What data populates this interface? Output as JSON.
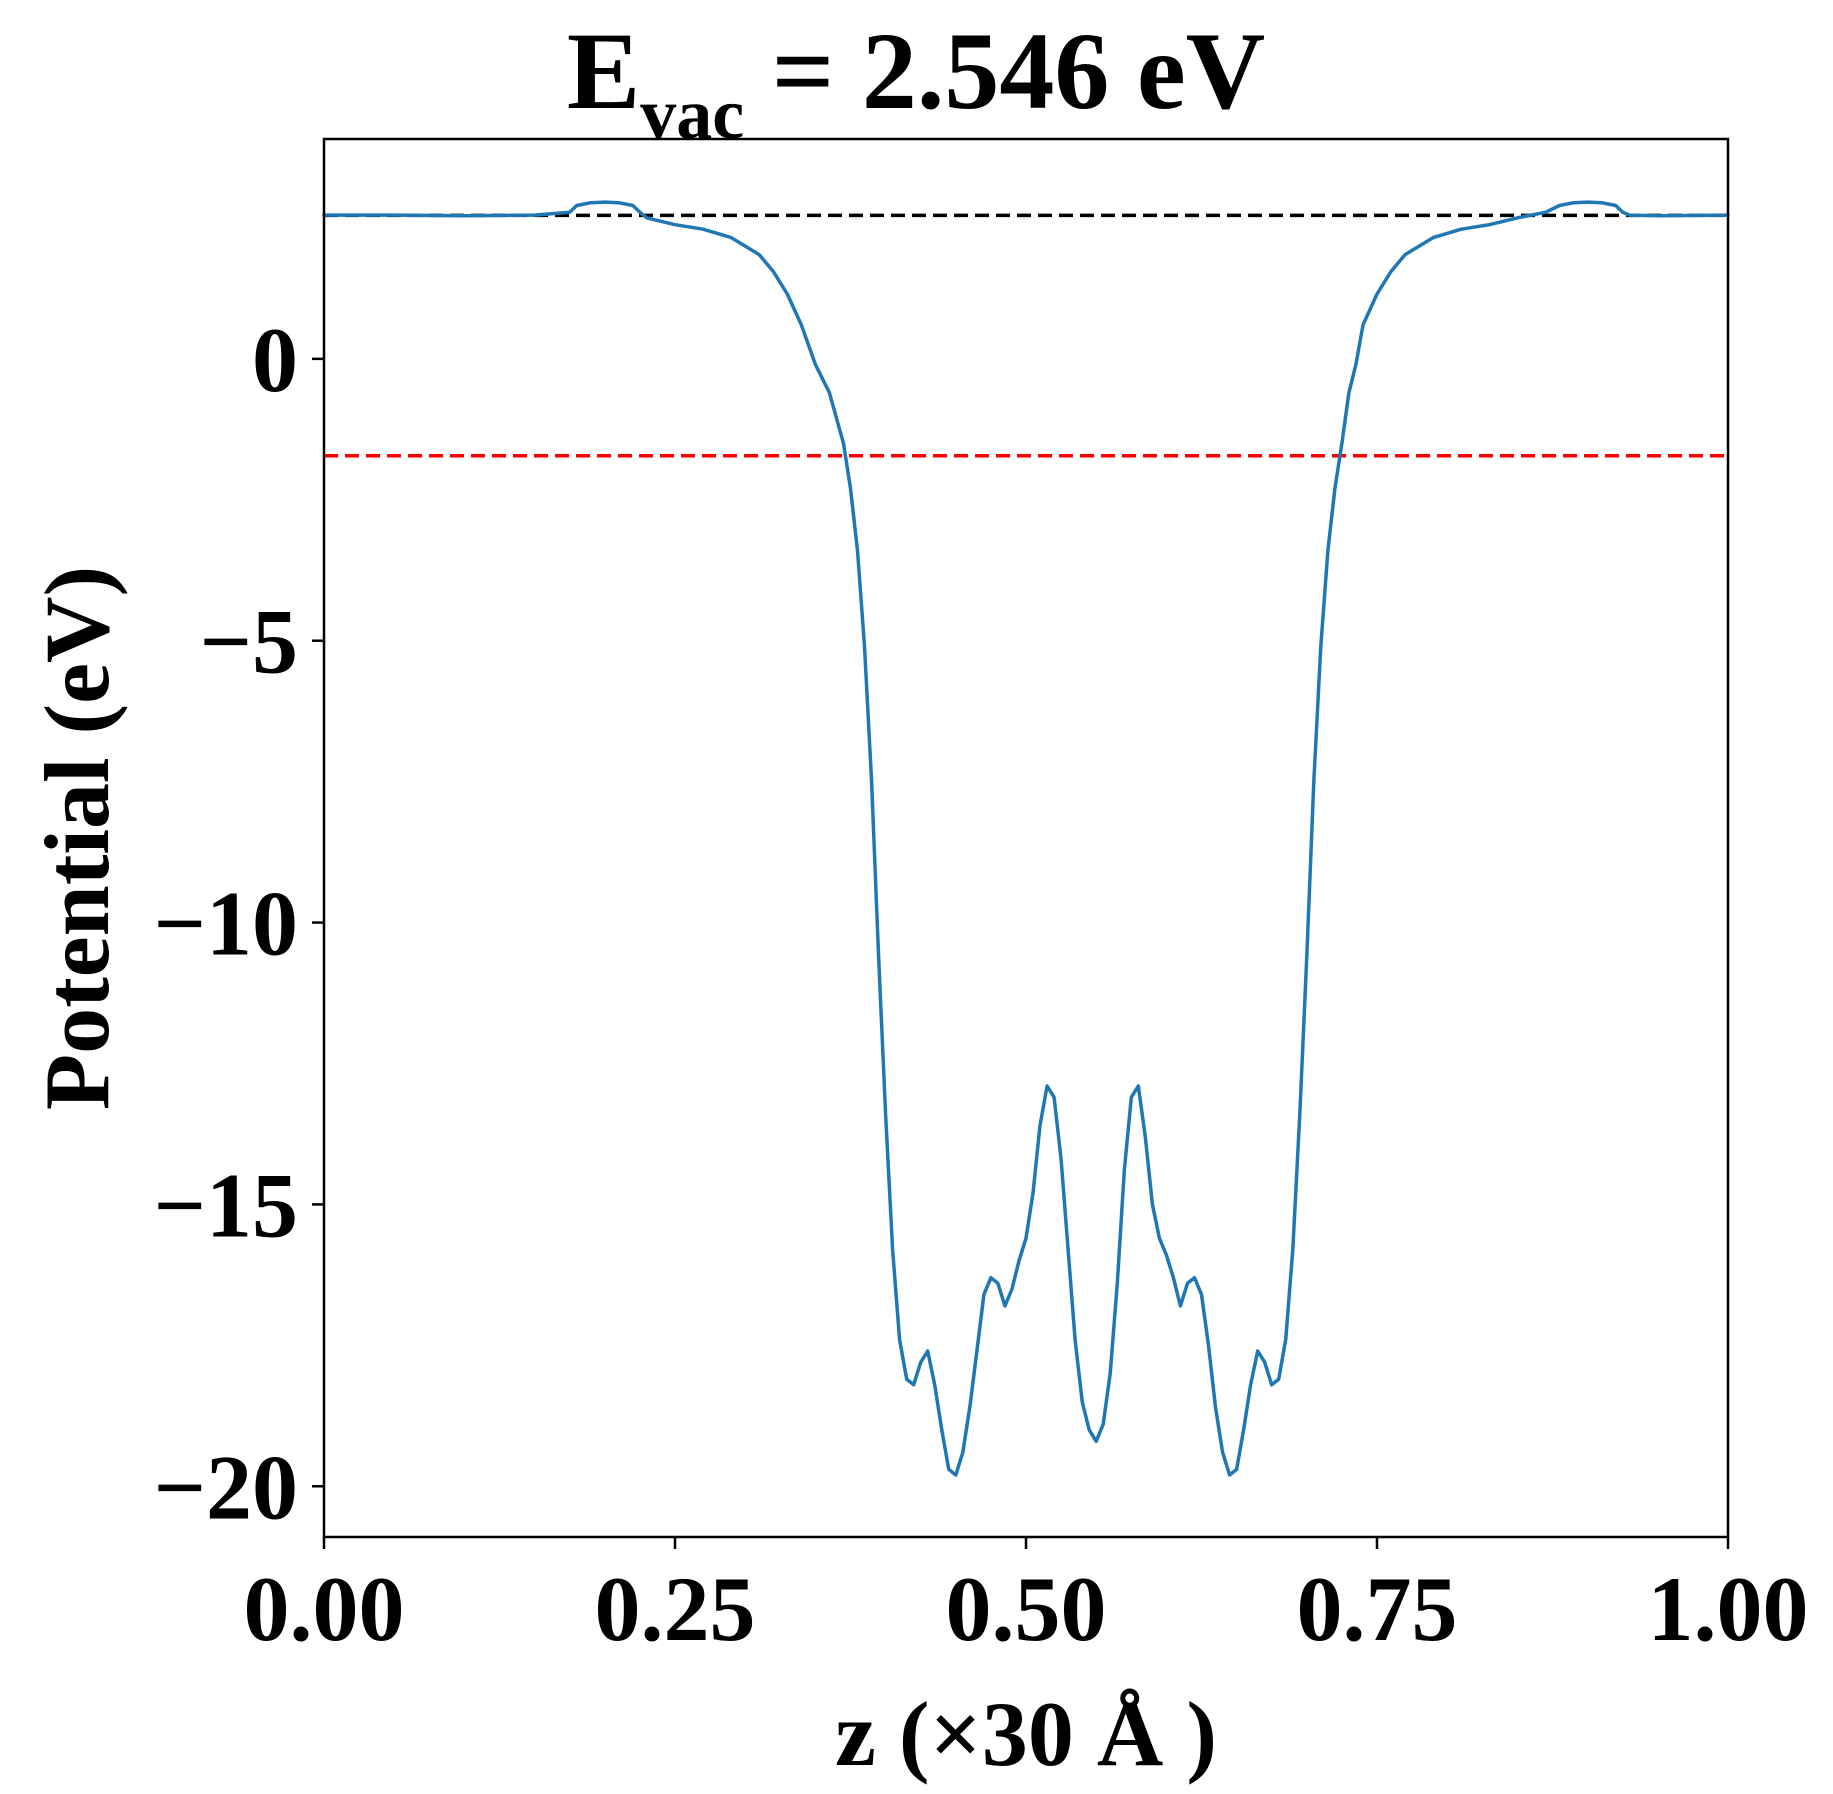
{
  "chart_data": {
    "type": "line",
    "title": {
      "main": "E",
      "subscript": "vac",
      "rest": " = 2.546 eV"
    },
    "xlabel": "z (×30 Å )",
    "ylabel": "Potential (eV)",
    "xlim": [
      0.0,
      1.0
    ],
    "ylim": [
      -20.9,
      3.9
    ],
    "x_ticks": [
      0.0,
      0.25,
      0.5,
      0.75,
      1.0
    ],
    "x_tick_labels": [
      "0.00",
      "0.25",
      "0.50",
      "0.75",
      "1.00"
    ],
    "y_ticks": [
      0,
      -5,
      -10,
      -15,
      -20
    ],
    "y_tick_labels": [
      "0",
      "−5",
      "−10",
      "−15",
      "−20"
    ],
    "grid": false,
    "legend": "none",
    "series": [
      {
        "color": "#1f77b4",
        "x": [
          0.0,
          0.05,
          0.1,
          0.15,
          0.175,
          0.18,
          0.19,
          0.2,
          0.21,
          0.22,
          0.225,
          0.23,
          0.25,
          0.27,
          0.29,
          0.31,
          0.32,
          0.33,
          0.34,
          0.35,
          0.36,
          0.37,
          0.375,
          0.38,
          0.385,
          0.39,
          0.395,
          0.4,
          0.405,
          0.41,
          0.415,
          0.42,
          0.425,
          0.43,
          0.435,
          0.44,
          0.445,
          0.45,
          0.455,
          0.46,
          0.465,
          0.47,
          0.475,
          0.48,
          0.485,
          0.49,
          0.495,
          0.5,
          0.505,
          0.51,
          0.515,
          0.52,
          0.525,
          0.53,
          0.535,
          0.54,
          0.545,
          0.55,
          0.555,
          0.56,
          0.565,
          0.57,
          0.575,
          0.58,
          0.585,
          0.59,
          0.595,
          0.6,
          0.605,
          0.61,
          0.615,
          0.62,
          0.625,
          0.63,
          0.635,
          0.64,
          0.645,
          0.65,
          0.655,
          0.66,
          0.665,
          0.67,
          0.675,
          0.68,
          0.685,
          0.69,
          0.695,
          0.7,
          0.705,
          0.71,
          0.715,
          0.72,
          0.725,
          0.73,
          0.735,
          0.74,
          0.75,
          0.76,
          0.77,
          0.79,
          0.81,
          0.83,
          0.85,
          0.87,
          0.88,
          0.89,
          0.9,
          0.91,
          0.92,
          0.925,
          0.93,
          0.95,
          1.0
        ],
        "y": [
          2.55,
          2.55,
          2.54,
          2.55,
          2.6,
          2.72,
          2.77,
          2.78,
          2.77,
          2.72,
          2.6,
          2.5,
          2.38,
          2.3,
          2.15,
          1.85,
          1.55,
          1.15,
          0.6,
          -0.1,
          -0.6,
          -1.5,
          -2.3,
          -3.4,
          -5.1,
          -7.5,
          -10.6,
          -13.4,
          -15.8,
          -17.4,
          -18.1,
          -18.2,
          -17.8,
          -17.6,
          -18.2,
          -19.0,
          -19.7,
          -19.8,
          -19.4,
          -18.6,
          -17.6,
          -16.6,
          -16.3,
          -16.4,
          -16.8,
          -16.5,
          -16.0,
          -15.6,
          -14.8,
          -13.6,
          -12.9,
          -13.1,
          -14.2,
          -15.8,
          -17.4,
          -18.5,
          -19.0,
          -19.2,
          -18.9,
          -18.0,
          -16.4,
          -14.4,
          -13.1,
          -12.9,
          -13.8,
          -15.0,
          -15.6,
          -15.9,
          -16.3,
          -16.8,
          -16.4,
          -16.3,
          -16.6,
          -17.5,
          -18.6,
          -19.4,
          -19.8,
          -19.7,
          -19.0,
          -18.2,
          -17.6,
          -17.8,
          -18.2,
          -18.1,
          -17.4,
          -15.8,
          -13.4,
          -10.6,
          -7.5,
          -5.1,
          -3.4,
          -2.3,
          -1.5,
          -0.6,
          -0.1,
          0.6,
          1.15,
          1.55,
          1.85,
          2.15,
          2.3,
          2.38,
          2.5,
          2.6,
          2.72,
          2.77,
          2.78,
          2.77,
          2.72,
          2.6,
          2.55,
          2.54,
          2.55
        ]
      }
    ],
    "reference_lines": [
      {
        "y": 2.546,
        "color": "#000000",
        "style": "dashed"
      },
      {
        "y": -1.72,
        "color": "#ff0000",
        "style": "dashed"
      }
    ]
  }
}
